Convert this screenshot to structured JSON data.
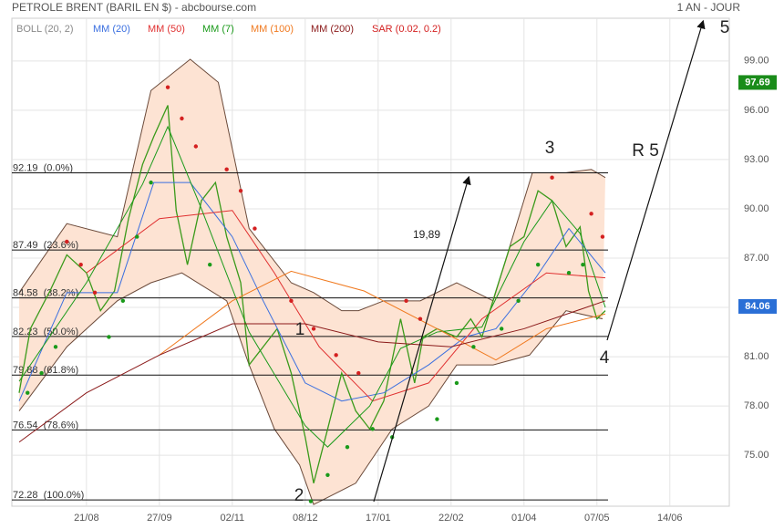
{
  "header": {
    "title": "PETROLE BRENT (BARIL EN $) - abcbourse.com",
    "period": "1 AN - JOUR"
  },
  "chart_data": {
    "type": "stock",
    "xlim": [
      -26.6,
      229.2
    ],
    "ylim": [
      71.9,
      101.6
    ],
    "xticks": [
      {
        "value": 0,
        "label": "21/08"
      },
      {
        "value": 26,
        "label": "27/09"
      },
      {
        "value": 52,
        "label": "02/11"
      },
      {
        "value": 78,
        "label": "08/12"
      },
      {
        "value": 104,
        "label": "17/01"
      },
      {
        "value": 130,
        "label": "22/02"
      },
      {
        "value": 156,
        "label": "01/04"
      },
      {
        "value": 182,
        "label": "07/05"
      },
      {
        "value": 208,
        "label": "14/06"
      }
    ],
    "yticks": [
      {
        "value": 75,
        "label": "75.00"
      },
      {
        "value": 78,
        "label": "78.00"
      },
      {
        "value": 81,
        "label": "81.00"
      },
      {
        "value": 84,
        "label": "84.00"
      },
      {
        "value": 87,
        "label": "87.00"
      },
      {
        "value": 90,
        "label": "90.00"
      },
      {
        "value": 93,
        "label": "93.00"
      },
      {
        "value": 96,
        "label": "96.00"
      },
      {
        "value": 99,
        "label": "99.00"
      }
    ],
    "grid": true,
    "price": {
      "color": "#3a9a1a",
      "x": [
        -24,
        -20,
        -13,
        -7,
        0,
        5,
        10,
        15,
        20,
        24,
        29,
        32,
        36,
        41,
        46,
        50,
        55,
        58,
        63,
        68,
        73,
        78,
        81,
        86,
        91,
        96,
        101,
        106,
        112,
        117,
        120,
        125,
        132,
        137,
        141,
        146,
        151,
        156,
        161,
        166,
        171,
        176,
        179,
        182,
        185
      ],
      "values": [
        78.8,
        82.7,
        85.0,
        87.2,
        86.1,
        83.8,
        85.0,
        89.4,
        92.7,
        94.4,
        96.3,
        89.9,
        86.6,
        90.5,
        91.6,
        88.3,
        85.5,
        80.5,
        81.6,
        82.7,
        80.0,
        76.1,
        73.3,
        76.6,
        80.0,
        77.7,
        76.6,
        78.3,
        83.3,
        79.4,
        82.2,
        82.7,
        82.2,
        83.3,
        82.2,
        85.0,
        87.7,
        88.3,
        91.1,
        90.5,
        87.7,
        88.9,
        85.0,
        83.3,
        83.8
      ]
    },
    "bollinger": {
      "name": "BOLL (20, 2)",
      "color": "#8a8a8a",
      "line_color": "#6b4a3a",
      "fill": "#fde3d3",
      "upper": {
        "x": [
          -24,
          -7,
          11,
          23,
          37,
          47,
          58,
          73,
          81,
          91,
          97,
          106,
          119,
          132,
          145,
          159,
          171,
          180,
          185
        ],
        "values": [
          84.9,
          89.1,
          88.3,
          97.2,
          99.1,
          97.7,
          88.8,
          85.5,
          84.9,
          83.8,
          83.8,
          84.4,
          84.4,
          85.5,
          84.4,
          92.2,
          92.2,
          92.4,
          91.9
        ]
      },
      "lower": {
        "x": [
          -24,
          -7,
          11,
          23,
          34,
          50,
          58,
          67,
          76,
          81,
          96,
          109,
          122,
          132,
          145,
          158,
          171,
          184
        ],
        "values": [
          77.7,
          81.6,
          84.4,
          85.5,
          86.1,
          84.4,
          80.5,
          76.6,
          74.4,
          72.0,
          73.3,
          76.6,
          78.0,
          80.5,
          80.5,
          81.1,
          83.8,
          83.3
        ]
      }
    },
    "series": [
      {
        "name": "MM (20)",
        "color": "#3a6fe0",
        "style": "line",
        "x": [
          -24,
          -7,
          11,
          24,
          37,
          52,
          63,
          78,
          91,
          106,
          122,
          135,
          146,
          159,
          172,
          185
        ],
        "values": [
          78.3,
          84.9,
          84.9,
          91.6,
          91.6,
          88.3,
          84.4,
          79.4,
          78.3,
          78.8,
          80.5,
          82.2,
          82.7,
          85.5,
          88.8,
          86.1
        ]
      },
      {
        "name": "MM (50)",
        "color": "#e03030",
        "style": "line",
        "x": [
          0,
          26,
          52,
          67,
          83,
          102,
          122,
          141,
          164,
          185
        ],
        "values": [
          86.1,
          89.4,
          89.9,
          86.1,
          81.6,
          78.3,
          79.4,
          83.3,
          86.1,
          85.8
        ]
      },
      {
        "name": "MM (7)",
        "color": "#1a9a1a",
        "style": "line",
        "x": [
          -24,
          0,
          20,
          29,
          41,
          58,
          78,
          86,
          101,
          112,
          125,
          141,
          156,
          166,
          176,
          185
        ],
        "values": [
          79.5,
          85.5,
          91.5,
          95.0,
          90.0,
          82.5,
          76.8,
          75.5,
          78.0,
          81.5,
          82.5,
          82.8,
          88.0,
          90.5,
          88.5,
          84.0
        ]
      },
      {
        "name": "MM (100)",
        "color": "#f07a20",
        "style": "line",
        "x": [
          26,
          52,
          73,
          99,
          125,
          146,
          164,
          185
        ],
        "values": [
          81.1,
          84.4,
          86.2,
          85.0,
          82.7,
          80.8,
          82.7,
          83.6
        ]
      },
      {
        "name": "MM (200)",
        "color": "#8b1a1a",
        "style": "line",
        "x": [
          -24,
          0,
          26,
          52,
          78,
          104,
          130,
          156,
          185
        ],
        "values": [
          75.8,
          78.8,
          81.1,
          83.0,
          83.0,
          81.9,
          81.6,
          82.7,
          84.4
        ]
      },
      {
        "name": "SAR (0.02, 0.2)",
        "color": "#d42020",
        "below_color": "#1a9a1a",
        "style": "dots",
        "x": [
          -21,
          -16,
          -11,
          -7,
          -2,
          3,
          8,
          13,
          18,
          23,
          29,
          34,
          39,
          44,
          50,
          55,
          60,
          73,
          81,
          89,
          97,
          80,
          86,
          93,
          102,
          109,
          114,
          119,
          125,
          132,
          138,
          148,
          154,
          161,
          166,
          172,
          177,
          180,
          184
        ],
        "values": [
          78.8,
          80.0,
          81.6,
          88.0,
          86.6,
          84.9,
          82.2,
          84.4,
          88.3,
          91.6,
          97.4,
          95.5,
          93.8,
          86.6,
          92.4,
          91.1,
          88.8,
          84.4,
          82.7,
          81.1,
          80.0,
          72.2,
          73.8,
          75.5,
          76.6,
          76.1,
          84.4,
          83.3,
          77.2,
          79.4,
          81.6,
          82.7,
          84.4,
          86.6,
          91.9,
          86.1,
          86.6,
          89.7,
          88.3
        ]
      }
    ],
    "fibonacci": [
      {
        "value": 92.19,
        "label": "92.19  (0.0%)"
      },
      {
        "value": 87.49,
        "label": "87.49  (23.6%)"
      },
      {
        "value": 84.58,
        "label": "84.58  (38.2%)"
      },
      {
        "value": 82.23,
        "label": "82.23  (50.0%)"
      },
      {
        "value": 79.88,
        "label": "79.88  (61.8%)"
      },
      {
        "value": 76.54,
        "label": "76.54  (78.6%)"
      },
      {
        "value": 72.28,
        "label": "72.28  (100.0%)"
      }
    ],
    "markers": [
      {
        "value": 97.69,
        "color": "#1a8c1a"
      },
      {
        "value": 84.06,
        "color": "#2a6fd6"
      }
    ],
    "annotations": [
      "1",
      "2",
      "3",
      "4",
      "5",
      "R 5",
      "19,89"
    ]
  }
}
